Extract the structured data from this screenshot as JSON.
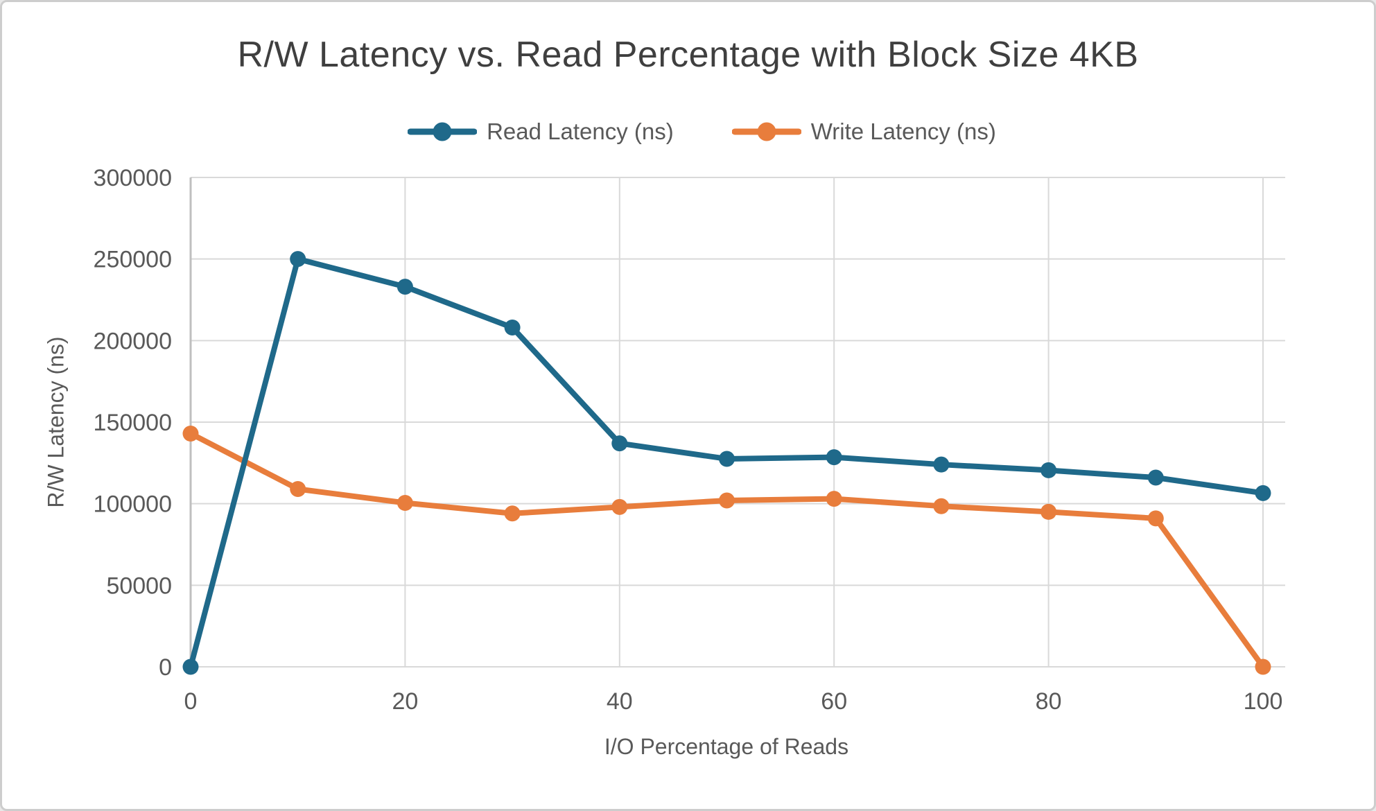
{
  "chart_data": {
    "type": "line",
    "title": "R/W Latency vs. Read Percentage with Block Size 4KB",
    "xlabel": "I/O Percentage of Reads",
    "ylabel": "R/W Latency (ns)",
    "x": [
      0,
      10,
      20,
      30,
      40,
      50,
      60,
      70,
      80,
      90,
      100
    ],
    "series": [
      {
        "name": "Read Latency (ns)",
        "color": "#1F698A",
        "values": [
          0,
          250000,
          233000,
          208000,
          137000,
          127500,
          128500,
          124000,
          120500,
          116000,
          106500
        ]
      },
      {
        "name": "Write Latency (ns)",
        "color": "#E87D3C",
        "values": [
          143000,
          109000,
          100500,
          94000,
          98000,
          102000,
          103000,
          98500,
          95000,
          91000,
          0
        ]
      }
    ],
    "xticks": [
      0,
      20,
      40,
      60,
      80,
      100
    ],
    "yticks": [
      0,
      50000,
      100000,
      150000,
      200000,
      250000,
      300000
    ],
    "xlim": [
      0,
      100
    ],
    "ylim": [
      0,
      300000
    ],
    "grid": true,
    "legend_position": "top",
    "gridline_color": "#D9D9D9",
    "axis_line_color": "#BFBFBF",
    "axis_text_color": "#595959",
    "title_color": "#3f3f3f"
  }
}
